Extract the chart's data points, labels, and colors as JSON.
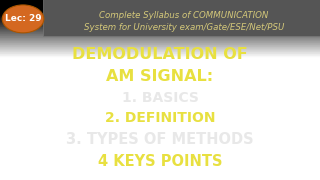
{
  "bg_color_top": "#4a4a4a",
  "bg_color_bottom": "#1a1a1a",
  "header_box_color": "#555555",
  "header_box_edge": "#777777",
  "header_text_color": "#d4c87a",
  "header_line1": "Complete Syllabus of COMMUNICATION",
  "header_line2": "System for University exam/Gate/ESE/Net/PSU",
  "lec_badge_color": "#d46820",
  "lec_badge_text": "Lec: 29",
  "lec_badge_text_color": "#ffffff",
  "title_color": "#e8e040",
  "title_lines": [
    "DEMODULATION OF",
    "AM SIGNAL:"
  ],
  "item1_text": "1. BASICS",
  "item1_color": "#e8e8e8",
  "item2_text": "2. DEFINITION",
  "item2_color": "#e8e040",
  "item3_text": "3. TYPES OF METHODS",
  "item3_color": "#e8e8e8",
  "item4_text": "4 KEYS POINTS",
  "item4_color": "#e8e040",
  "title_fontsize": 11.5,
  "item_fontsize": 10,
  "item34_fontsize": 10.5,
  "header_fontsize": 6.2,
  "lec_fontsize": 6.5
}
